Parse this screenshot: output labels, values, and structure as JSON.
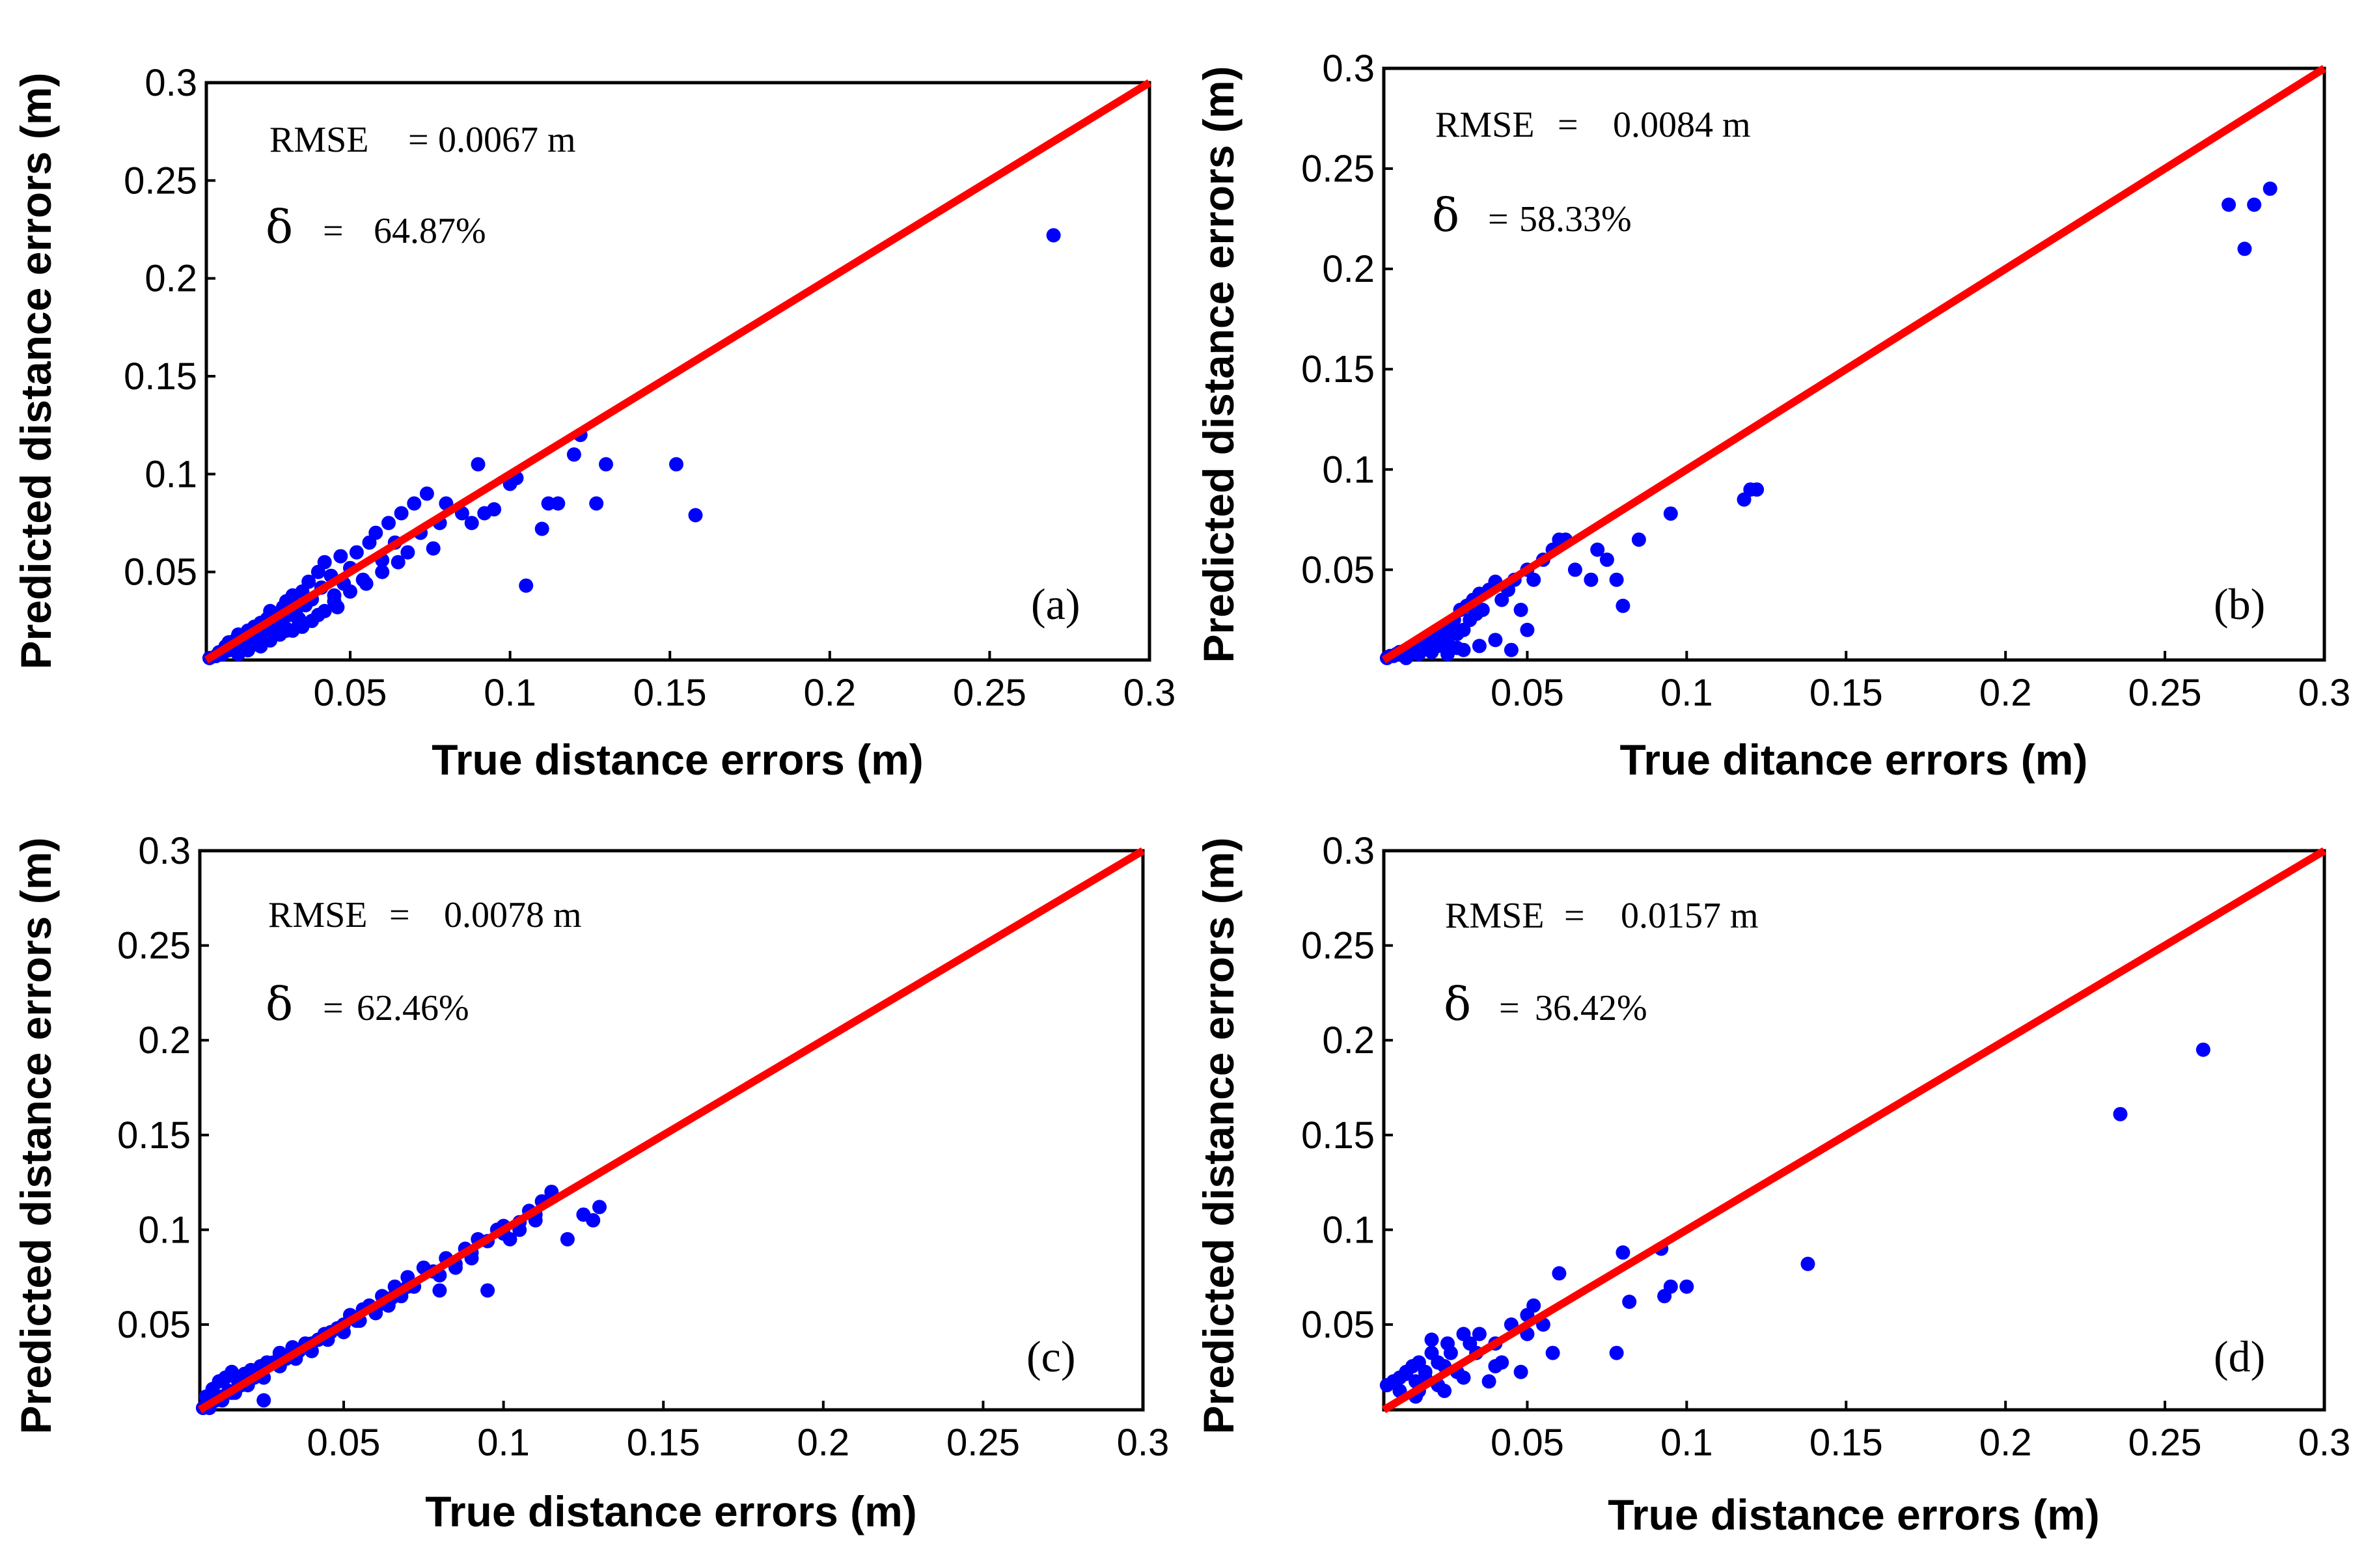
{
  "chart_data": [
    {
      "type": "scatter",
      "panel": "(a)",
      "xlabel": "True distance errors (m)",
      "ylabel": "Predicted distance errors (m)",
      "xlim": [
        0.005,
        0.3
      ],
      "ylim": [
        0.005,
        0.3
      ],
      "xticks": [
        "0.05",
        "0.1",
        "0.15",
        "0.2",
        "0.25",
        "0.3"
      ],
      "yticks": [
        "0.05",
        "0.1",
        "0.15",
        "0.2",
        "0.25",
        "0.3"
      ],
      "rmse_label": "RMSE",
      "rmse_value": "0.0067 m",
      "delta_symbol": "δ",
      "delta_value": "64.87%",
      "line": {
        "x": [
          0.005,
          0.3
        ],
        "y": [
          0.005,
          0.3
        ],
        "color": "#ff0000"
      },
      "points": {
        "x": [
          0.006,
          0.008,
          0.009,
          0.01,
          0.011,
          0.012,
          0.012,
          0.013,
          0.014,
          0.015,
          0.015,
          0.016,
          0.017,
          0.018,
          0.018,
          0.019,
          0.02,
          0.02,
          0.021,
          0.022,
          0.022,
          0.023,
          0.024,
          0.025,
          0.025,
          0.026,
          0.027,
          0.028,
          0.029,
          0.03,
          0.03,
          0.031,
          0.032,
          0.033,
          0.034,
          0.035,
          0.036,
          0.037,
          0.038,
          0.04,
          0.041,
          0.042,
          0.044,
          0.045,
          0.047,
          0.048,
          0.05,
          0.052,
          0.054,
          0.056,
          0.058,
          0.06,
          0.062,
          0.064,
          0.066,
          0.068,
          0.07,
          0.072,
          0.074,
          0.076,
          0.078,
          0.08,
          0.085,
          0.088,
          0.09,
          0.092,
          0.095,
          0.1,
          0.102,
          0.105,
          0.11,
          0.112,
          0.115,
          0.12,
          0.122,
          0.127,
          0.13,
          0.152,
          0.158,
          0.27,
          0.015,
          0.018,
          0.022,
          0.025,
          0.028,
          0.032,
          0.035,
          0.038,
          0.042,
          0.045,
          0.02,
          0.024,
          0.03,
          0.034,
          0.04,
          0.046,
          0.05,
          0.055,
          0.06,
          0.065
        ],
        "y": [
          0.006,
          0.007,
          0.009,
          0.008,
          0.012,
          0.01,
          0.014,
          0.011,
          0.015,
          0.012,
          0.018,
          0.014,
          0.016,
          0.013,
          0.02,
          0.017,
          0.015,
          0.022,
          0.019,
          0.016,
          0.024,
          0.02,
          0.026,
          0.018,
          0.03,
          0.022,
          0.028,
          0.025,
          0.032,
          0.02,
          0.035,
          0.028,
          0.038,
          0.03,
          0.026,
          0.04,
          0.033,
          0.045,
          0.036,
          0.05,
          0.042,
          0.055,
          0.048,
          0.038,
          0.058,
          0.044,
          0.052,
          0.06,
          0.046,
          0.065,
          0.07,
          0.056,
          0.075,
          0.065,
          0.08,
          0.06,
          0.085,
          0.07,
          0.09,
          0.062,
          0.075,
          0.085,
          0.08,
          0.075,
          0.105,
          0.08,
          0.082,
          0.095,
          0.098,
          0.043,
          0.072,
          0.085,
          0.085,
          0.11,
          0.12,
          0.085,
          0.105,
          0.105,
          0.079,
          0.222,
          0.008,
          0.01,
          0.012,
          0.015,
          0.018,
          0.02,
          0.022,
          0.025,
          0.03,
          0.035,
          0.013,
          0.016,
          0.021,
          0.024,
          0.028,
          0.032,
          0.04,
          0.044,
          0.05,
          0.055
        ]
      }
    },
    {
      "type": "scatter",
      "panel": "(b)",
      "xlabel": "True ditance errors (m)",
      "ylabel": "Predicted distance errors (m)",
      "xlim": [
        0.005,
        0.3
      ],
      "ylim": [
        0.005,
        0.3
      ],
      "xticks": [
        "0.05",
        "0.1",
        "0.15",
        "0.2",
        "0.25",
        "0.3"
      ],
      "yticks": [
        "0.05",
        "0.1",
        "0.15",
        "0.2",
        "0.25",
        "0.3"
      ],
      "rmse_label": "RMSE",
      "rmse_value": "0.0084 m",
      "delta_symbol": "δ",
      "delta_value": "58.33%",
      "line": {
        "x": [
          0.005,
          0.3
        ],
        "y": [
          0.005,
          0.3
        ],
        "color": "#ff0000"
      },
      "points": {
        "x": [
          0.006,
          0.007,
          0.008,
          0.009,
          0.01,
          0.011,
          0.012,
          0.013,
          0.014,
          0.015,
          0.016,
          0.017,
          0.018,
          0.019,
          0.02,
          0.021,
          0.022,
          0.023,
          0.024,
          0.025,
          0.026,
          0.027,
          0.028,
          0.029,
          0.03,
          0.031,
          0.032,
          0.033,
          0.034,
          0.035,
          0.036,
          0.038,
          0.04,
          0.042,
          0.044,
          0.046,
          0.048,
          0.05,
          0.052,
          0.055,
          0.058,
          0.06,
          0.062,
          0.065,
          0.07,
          0.072,
          0.075,
          0.078,
          0.08,
          0.085,
          0.095,
          0.118,
          0.12,
          0.122,
          0.27,
          0.275,
          0.278,
          0.283,
          0.025,
          0.03,
          0.035,
          0.04,
          0.045,
          0.05,
          0.012,
          0.016,
          0.02,
          0.024,
          0.028
        ],
        "y": [
          0.006,
          0.007,
          0.007,
          0.008,
          0.009,
          0.008,
          0.01,
          0.011,
          0.009,
          0.012,
          0.01,
          0.014,
          0.011,
          0.015,
          0.013,
          0.016,
          0.012,
          0.018,
          0.02,
          0.015,
          0.022,
          0.025,
          0.018,
          0.03,
          0.02,
          0.032,
          0.025,
          0.035,
          0.028,
          0.038,
          0.03,
          0.04,
          0.044,
          0.035,
          0.04,
          0.045,
          0.03,
          0.05,
          0.045,
          0.055,
          0.06,
          0.065,
          0.065,
          0.05,
          0.045,
          0.06,
          0.055,
          0.045,
          0.032,
          0.065,
          0.078,
          0.085,
          0.09,
          0.09,
          0.232,
          0.21,
          0.232,
          0.24,
          0.008,
          0.01,
          0.012,
          0.015,
          0.01,
          0.02,
          0.006,
          0.008,
          0.009,
          0.012,
          0.011
        ]
      }
    },
    {
      "type": "scatter",
      "panel": "(c)",
      "xlabel": "True distance errors (m)",
      "ylabel": "Predicted distance errors (m)",
      "xlim": [
        0.005,
        0.3
      ],
      "ylim": [
        0.005,
        0.3
      ],
      "xticks": [
        "0.05",
        "0.1",
        "0.15",
        "0.2",
        "0.25",
        "0.3"
      ],
      "yticks": [
        "0.05",
        "0.1",
        "0.15",
        "0.2",
        "0.25",
        "0.3"
      ],
      "rmse_label": "RMSE",
      "rmse_value": "0.0078 m",
      "delta_symbol": "δ",
      "delta_value": "62.46%",
      "line": {
        "x": [
          0.005,
          0.3
        ],
        "y": [
          0.005,
          0.3
        ],
        "color": "#ff0000"
      },
      "points": {
        "x": [
          0.006,
          0.007,
          0.008,
          0.009,
          0.01,
          0.011,
          0.012,
          0.013,
          0.014,
          0.015,
          0.016,
          0.017,
          0.018,
          0.019,
          0.02,
          0.021,
          0.022,
          0.024,
          0.025,
          0.026,
          0.028,
          0.03,
          0.032,
          0.034,
          0.036,
          0.038,
          0.04,
          0.042,
          0.044,
          0.046,
          0.048,
          0.05,
          0.052,
          0.054,
          0.056,
          0.058,
          0.06,
          0.062,
          0.064,
          0.066,
          0.068,
          0.07,
          0.072,
          0.075,
          0.078,
          0.08,
          0.082,
          0.085,
          0.088,
          0.09,
          0.092,
          0.095,
          0.098,
          0.1,
          0.102,
          0.105,
          0.108,
          0.11,
          0.112,
          0.115,
          0.12,
          0.125,
          0.128,
          0.13,
          0.008,
          0.012,
          0.015,
          0.02,
          0.025,
          0.03,
          0.035,
          0.04,
          0.045,
          0.05,
          0.055,
          0.06,
          0.065,
          0.07,
          0.08,
          0.085,
          0.09,
          0.095,
          0.1,
          0.105,
          0.11
        ],
        "y": [
          0.006,
          0.012,
          0.008,
          0.016,
          0.01,
          0.02,
          0.012,
          0.022,
          0.015,
          0.025,
          0.014,
          0.02,
          0.018,
          0.024,
          0.02,
          0.026,
          0.022,
          0.028,
          0.01,
          0.03,
          0.03,
          0.035,
          0.032,
          0.038,
          0.036,
          0.04,
          0.04,
          0.042,
          0.045,
          0.046,
          0.048,
          0.05,
          0.055,
          0.052,
          0.058,
          0.06,
          0.056,
          0.065,
          0.06,
          0.07,
          0.065,
          0.075,
          0.07,
          0.08,
          0.078,
          0.068,
          0.085,
          0.08,
          0.09,
          0.085,
          0.095,
          0.068,
          0.1,
          0.102,
          0.095,
          0.1,
          0.11,
          0.105,
          0.115,
          0.12,
          0.095,
          0.108,
          0.105,
          0.112,
          0.006,
          0.01,
          0.014,
          0.018,
          0.022,
          0.028,
          0.032,
          0.036,
          0.042,
          0.046,
          0.052,
          0.058,
          0.064,
          0.07,
          0.076,
          0.082,
          0.088,
          0.094,
          0.098,
          0.104,
          0.108
        ]
      }
    },
    {
      "type": "scatter",
      "panel": "(d)",
      "xlabel": "True distance errors (m)",
      "ylabel": "Predicted distance errors (m)",
      "xlim": [
        0.005,
        0.3
      ],
      "ylim": [
        0.005,
        0.3
      ],
      "xticks": [
        "0.05",
        "0.1",
        "0.15",
        "0.2",
        "0.25",
        "0.3"
      ],
      "yticks": [
        "0.05",
        "0.1",
        "0.15",
        "0.2",
        "0.25",
        "0.3"
      ],
      "rmse_label": "RMSE",
      "rmse_value": "0.0157 m",
      "delta_symbol": "δ",
      "delta_value": "36.42%",
      "line": {
        "x": [
          0.005,
          0.3
        ],
        "y": [
          0.005,
          0.3
        ],
        "color": "#ff0000"
      },
      "points": {
        "x": [
          0.006,
          0.008,
          0.01,
          0.012,
          0.014,
          0.015,
          0.016,
          0.018,
          0.02,
          0.02,
          0.022,
          0.024,
          0.025,
          0.026,
          0.028,
          0.03,
          0.032,
          0.034,
          0.035,
          0.038,
          0.04,
          0.042,
          0.045,
          0.048,
          0.05,
          0.052,
          0.055,
          0.058,
          0.06,
          0.078,
          0.08,
          0.082,
          0.092,
          0.093,
          0.095,
          0.1,
          0.138,
          0.236,
          0.262,
          0.01,
          0.015,
          0.018,
          0.022,
          0.03,
          0.04,
          0.05,
          0.012,
          0.016,
          0.024
        ],
        "y": [
          0.018,
          0.02,
          0.022,
          0.025,
          0.028,
          0.02,
          0.03,
          0.025,
          0.035,
          0.042,
          0.03,
          0.028,
          0.04,
          0.035,
          0.025,
          0.045,
          0.04,
          0.035,
          0.045,
          0.02,
          0.04,
          0.03,
          0.05,
          0.025,
          0.055,
          0.06,
          0.05,
          0.035,
          0.077,
          0.035,
          0.088,
          0.062,
          0.09,
          0.065,
          0.07,
          0.07,
          0.082,
          0.161,
          0.195,
          0.015,
          0.012,
          0.022,
          0.018,
          0.022,
          0.028,
          0.045,
          0.024,
          0.015,
          0.015
        ]
      }
    }
  ]
}
